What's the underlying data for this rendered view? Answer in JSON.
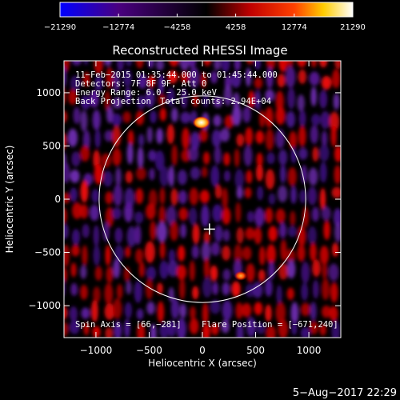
{
  "chart_data": {
    "type": "heatmap",
    "title": "Reconstructed RHESSI Image",
    "xlabel": "Heliocentric X (arcsec)",
    "ylabel": "Heliocentric Y (arcsec)",
    "xlim": [
      -1300,
      1300
    ],
    "ylim": [
      -1300,
      1300
    ],
    "x_ticks": [
      -1000,
      -500,
      0,
      500,
      1000
    ],
    "y_ticks": [
      -1000,
      -500,
      0,
      500,
      1000
    ],
    "x_tick_labels": [
      "−1000",
      "−500",
      "0",
      "500",
      "1000"
    ],
    "y_tick_labels": [
      "−1000",
      "−500",
      "0",
      "500",
      "1000"
    ],
    "colorbar": {
      "range": [
        -21290,
        21290
      ],
      "ticks": [
        -21290,
        -12774,
        -4258,
        4258,
        12774,
        21290
      ],
      "tick_labels": [
        "−21290",
        "−12774",
        "−4258",
        "4258",
        "12774",
        "21290"
      ],
      "colors": [
        "#0000ff",
        "#4a0080",
        "#000000",
        "#c00000",
        "#ff4000",
        "#ffcc00",
        "#ffffff"
      ]
    },
    "solar_disk_radius_arcsec": 970,
    "sources": [
      {
        "x": -10,
        "y": 720,
        "value": 21290
      },
      {
        "x": 360,
        "y": -720,
        "value": 12774
      }
    ],
    "marker": {
      "x": 66,
      "y": -281,
      "symbol": "+"
    },
    "annotations": [
      "11−Feb−2015 01:35:44.000 to 01:45:44.000",
      "Detectors: 7F 8F 9F, Att 0",
      "Energy Range: 6.0 − 25.0 keV",
      "Back Projection",
      "Total counts: 2.94E+04",
      "Spin Axis = [66,−281]",
      "Flare Position = [−671,240]"
    ],
    "footer": "5−Aug−2017 22:29"
  }
}
